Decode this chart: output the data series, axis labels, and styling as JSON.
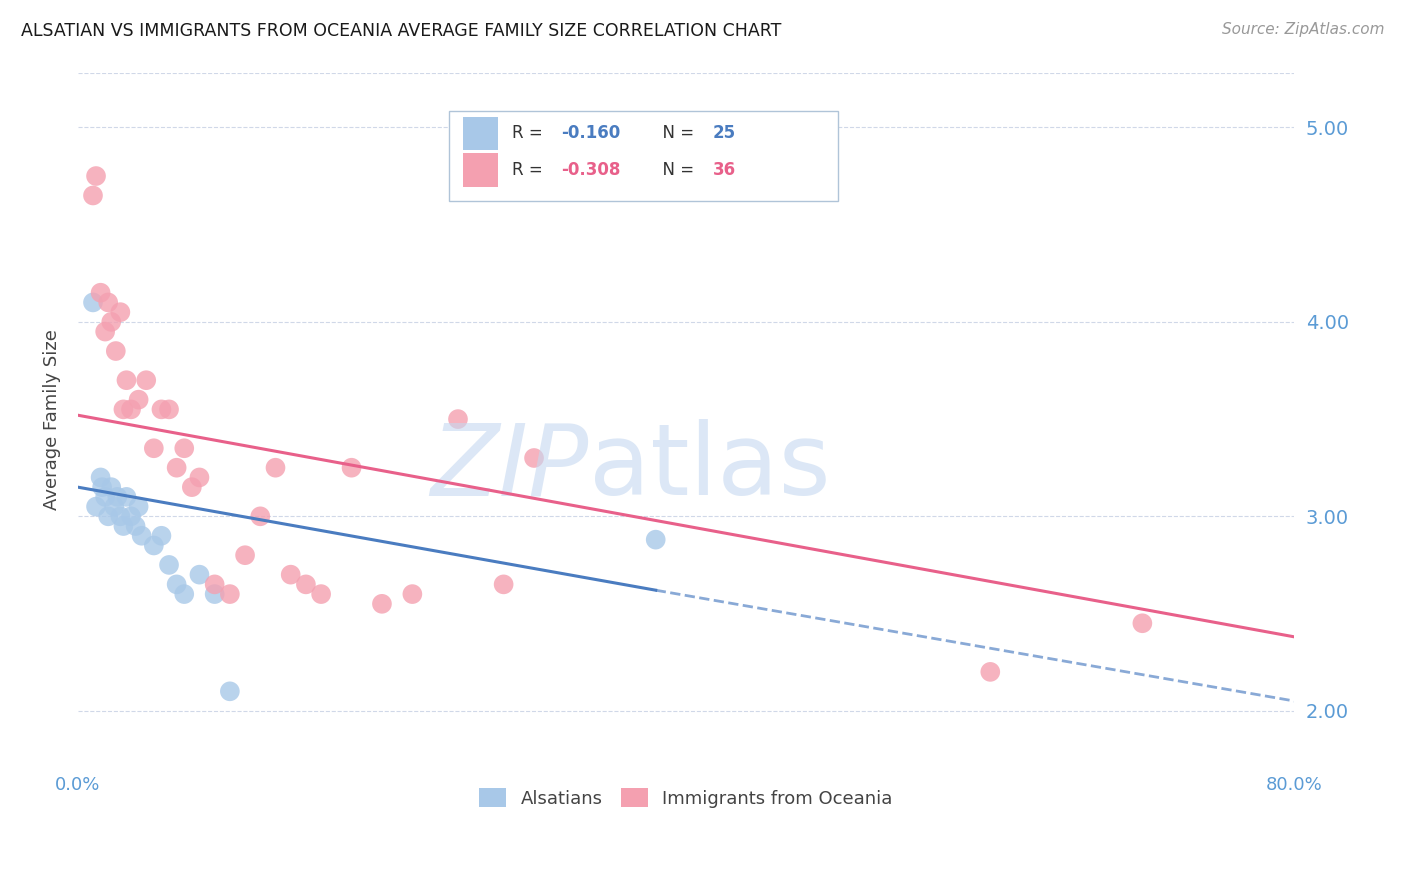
{
  "title": "ALSATIAN VS IMMIGRANTS FROM OCEANIA AVERAGE FAMILY SIZE CORRELATION CHART",
  "source": "Source: ZipAtlas.com",
  "ylabel": "Average Family Size",
  "watermark_zip": "ZIP",
  "watermark_atlas": "atlas",
  "right_yticks": [
    2.0,
    3.0,
    4.0,
    5.0
  ],
  "xlim": [
    0.0,
    80.0
  ],
  "ylim": [
    1.72,
    5.28
  ],
  "legend_R1": "R = -0.160",
  "legend_N1": "N = 25",
  "legend_R2": "R = -0.308",
  "legend_N2": "N = 36",
  "color_blue": "#a8c8e8",
  "color_pink": "#f4a0b0",
  "color_blue_line": "#4a7cc0",
  "color_pink_line": "#e8608a",
  "color_axis_tick": "#5b9bd5",
  "color_right_ticks": "#5b9bd5",
  "color_grid": "#d0d8e8",
  "alsatians_x": [
    1.0,
    1.2,
    1.5,
    1.6,
    1.8,
    2.0,
    2.2,
    2.4,
    2.6,
    2.8,
    3.0,
    3.2,
    3.5,
    3.8,
    4.0,
    4.2,
    5.0,
    5.5,
    6.0,
    6.5,
    7.0,
    8.0,
    9.0,
    10.0,
    38.0
  ],
  "alsatians_y": [
    4.1,
    3.05,
    3.2,
    3.15,
    3.1,
    3.0,
    3.15,
    3.05,
    3.1,
    3.0,
    2.95,
    3.1,
    3.0,
    2.95,
    3.05,
    2.9,
    2.85,
    2.9,
    2.75,
    2.65,
    2.6,
    2.7,
    2.6,
    2.1,
    2.88
  ],
  "oceania_x": [
    1.0,
    1.2,
    1.5,
    1.8,
    2.0,
    2.2,
    2.5,
    2.8,
    3.0,
    3.2,
    3.5,
    4.0,
    4.5,
    5.0,
    5.5,
    6.0,
    6.5,
    7.0,
    7.5,
    8.0,
    9.0,
    10.0,
    11.0,
    12.0,
    13.0,
    14.0,
    15.0,
    16.0,
    18.0,
    20.0,
    22.0,
    25.0,
    28.0,
    30.0,
    60.0,
    70.0
  ],
  "oceania_y": [
    4.65,
    4.75,
    4.15,
    3.95,
    4.1,
    4.0,
    3.85,
    4.05,
    3.55,
    3.7,
    3.55,
    3.6,
    3.7,
    3.35,
    3.55,
    3.55,
    3.25,
    3.35,
    3.15,
    3.2,
    2.65,
    2.6,
    2.8,
    3.0,
    3.25,
    2.7,
    2.65,
    2.6,
    3.25,
    2.55,
    2.6,
    3.5,
    2.65,
    3.3,
    2.2,
    2.45
  ],
  "blue_line_x_start": 0.0,
  "blue_line_x_solid_end": 38.0,
  "blue_line_x_end": 80.0,
  "blue_line_y_at_0": 3.15,
  "blue_line_y_at_38": 2.62,
  "blue_line_y_at_80": 2.05,
  "pink_line_x_start": 0.0,
  "pink_line_x_end": 80.0,
  "pink_line_y_at_0": 3.52,
  "pink_line_y_at_80": 2.38
}
